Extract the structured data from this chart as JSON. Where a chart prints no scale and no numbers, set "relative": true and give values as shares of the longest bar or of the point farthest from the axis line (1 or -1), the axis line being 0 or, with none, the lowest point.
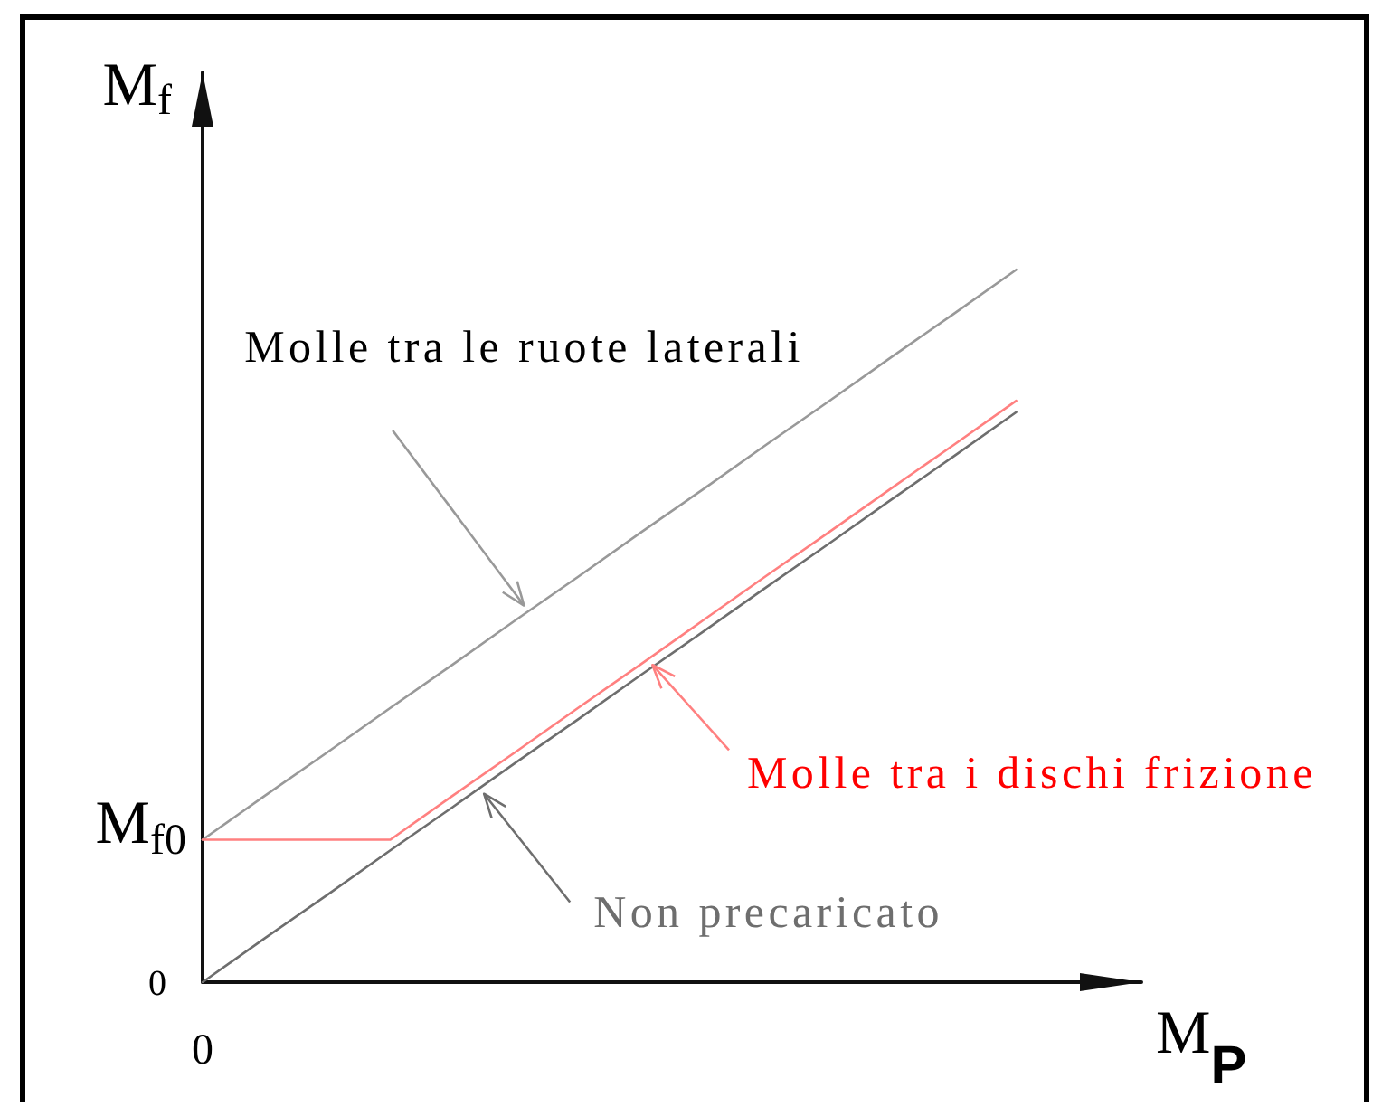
{
  "chart_data": {
    "type": "line",
    "relative": true,
    "xlabel": "M$_{P}$",
    "ylabel": "M$_{f}$",
    "categories": [
      null,
      null,
      null,
      null,
      null,
      null,
      null,
      null,
      null,
      null,
      null,
      null,
      null,
      null,
      null,
      null
    ],
    "series": [
      {
        "name": "Molle tra le ruote laterali",
        "color": "#999999",
        "values": [
          0.2,
          0.262,
          0.323,
          0.385,
          0.446,
          0.508,
          0.569,
          0.631,
          0.692,
          0.754,
          0.815,
          0.877,
          0.938,
          1,
          null,
          null
        ]
      },
      {
        "name": "Molle tra i dischi frizione",
        "color": "#ff8080",
        "values": [
          0.2,
          0.2,
          0.2,
          0.2,
          0.262,
          0.323,
          0.385,
          0.446,
          0.508,
          0.57,
          0.631,
          0.693,
          0.754,
          0.816,
          null,
          null
        ]
      },
      {
        "name": "Non precaricato",
        "color": "#6e6e6e",
        "values": [
          0,
          0.062,
          0.123,
          0.185,
          0.246,
          0.308,
          0.369,
          0.431,
          0.492,
          0.554,
          0.615,
          0.677,
          0.738,
          0.8,
          null,
          null
        ]
      }
    ],
    "annotations": [
      "M$_{f0}$",
      "0",
      "0"
    ],
    "legend": false,
    "marker": "none",
    "line_style": "solid"
  }
}
